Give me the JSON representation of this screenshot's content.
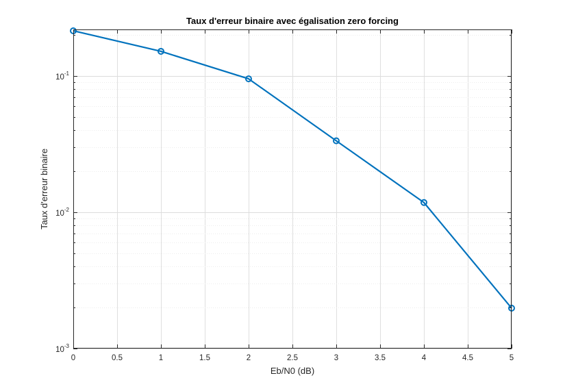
{
  "chart_data": {
    "type": "line",
    "title": "Taux d'erreur binaire avec égalisation zero forcing",
    "xlabel": "Eb/N0 (dB)",
    "ylabel": "Taux d'erreur binaire",
    "xlim": [
      0,
      5
    ],
    "ylim": [
      0.001,
      0.22
    ],
    "yscale": "log",
    "grid": true,
    "x_ticks": [
      0,
      0.5,
      1,
      1.5,
      2,
      2.5,
      3,
      3.5,
      4,
      4.5,
      5
    ],
    "x_tick_labels": [
      "0",
      "0.5",
      "1",
      "1.5",
      "2",
      "2.5",
      "3",
      "3.5",
      "4",
      "4.5",
      "5"
    ],
    "y_ticks": [
      {
        "value": 0.1,
        "base": "10",
        "exp": "-1"
      },
      {
        "value": 0.01,
        "base": "10",
        "exp": "-2"
      },
      {
        "value": 0.001,
        "base": "10",
        "exp": "-3"
      }
    ],
    "series": [
      {
        "x": [
          0,
          1,
          2,
          3,
          4,
          5
        ],
        "y": [
          0.215,
          0.152,
          0.0955,
          0.0335,
          0.0118,
          0.00198
        ],
        "color": "#0072bd",
        "marker": "circle"
      }
    ]
  }
}
